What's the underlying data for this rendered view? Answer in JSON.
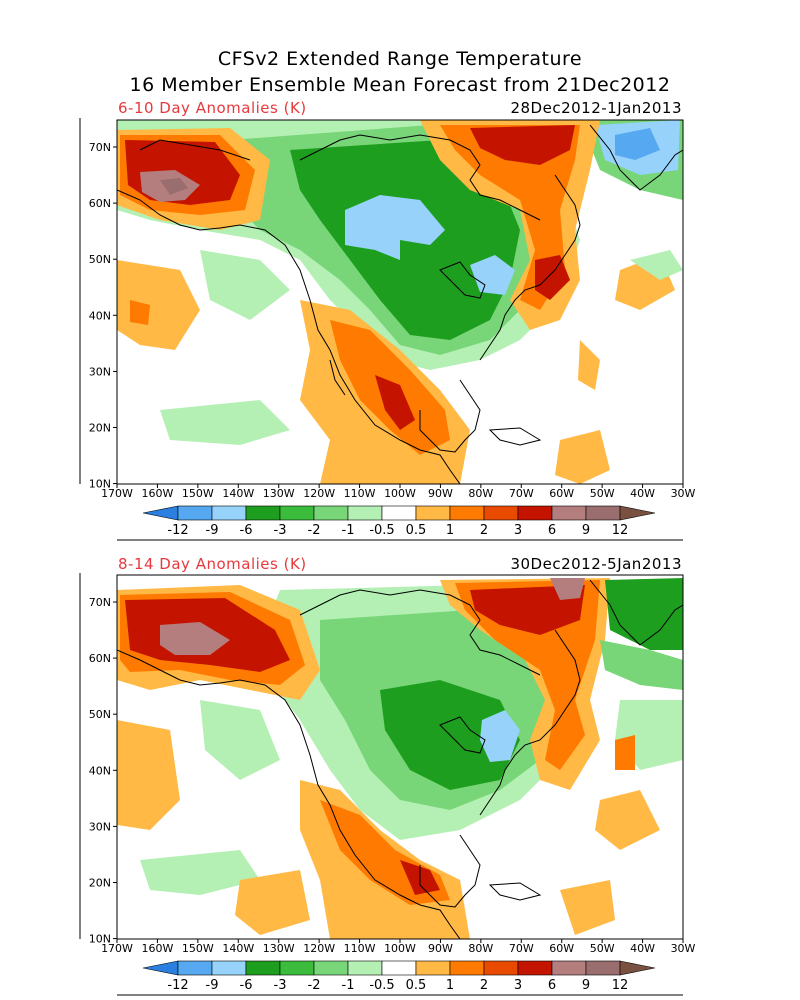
{
  "header": {
    "title_line1": "CFSv2 Extended Range Temperature",
    "title_line2": "16 Member Ensemble Mean Forecast from 21Dec2012"
  },
  "panels": [
    {
      "label": "6-10 Day Anomalies (K)",
      "dates": "28Dec2012-1Jan2013"
    },
    {
      "label": "8-14 Day Anomalies (K)",
      "dates": "30Dec2012-5Jan2013"
    }
  ],
  "axes": {
    "lat_ticks": [
      "70N",
      "60N",
      "50N",
      "40N",
      "30N",
      "20N",
      "10N"
    ],
    "lon_ticks": [
      "170W",
      "160W",
      "150W",
      "140W",
      "130W",
      "120W",
      "110W",
      "100W",
      "90W",
      "80W",
      "70W",
      "60W",
      "50W",
      "40W",
      "30W"
    ]
  },
  "colorbar": {
    "labels": [
      "-12",
      "-9",
      "-6",
      "-3",
      "-2",
      "-1",
      "-0.5",
      "0.5",
      "1",
      "2",
      "3",
      "6",
      "9",
      "12"
    ],
    "colors": [
      "#2b7fe0",
      "#56a8f0",
      "#96d2fa",
      "#1e9e1e",
      "#3cbc3c",
      "#78d678",
      "#b4f0b4",
      "#ffffff",
      "#ffb944",
      "#ff7a00",
      "#e84b00",
      "#c41400",
      "#b47e7e",
      "#9a6e6e",
      "#7a5040"
    ]
  },
  "colors": {
    "accent_label": "#e8383d",
    "cold_strong": "#2b7fe0",
    "cold_light": "#96d2fa",
    "green_dark": "#1e9e1e",
    "green_mid": "#3cbc3c",
    "green_light": "#b4f0b4",
    "warm_light": "#ffb944",
    "warm_mid": "#ff7a00",
    "warm_strong": "#c41400",
    "warm_extreme": "#b47e7e"
  }
}
